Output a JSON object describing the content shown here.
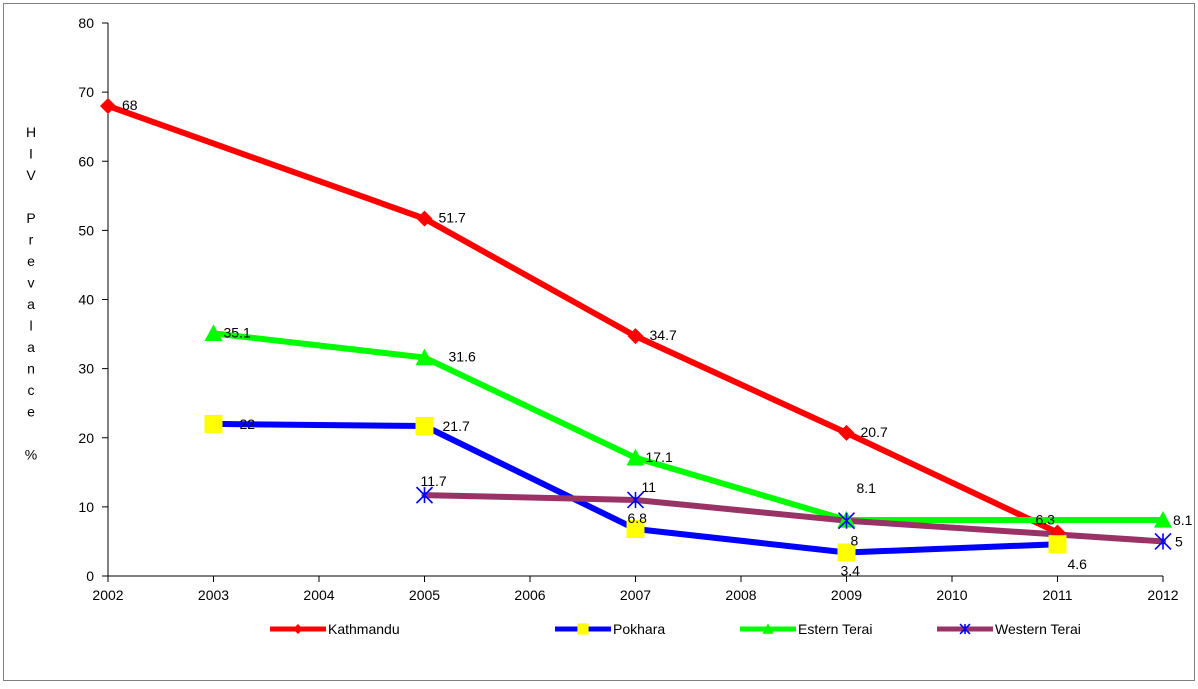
{
  "chart_data": {
    "type": "line",
    "title": "",
    "xlabel": "",
    "ylabel": "H I V Prevalance %",
    "ylabel_chars": [
      "H",
      "I",
      "V",
      "",
      "P",
      "r",
      "e",
      "v",
      "a",
      "l",
      "a",
      "n",
      "c",
      "e",
      "",
      "%"
    ],
    "x_ticks": [
      "2002",
      "2003",
      "2004",
      "2005",
      "2006",
      "2007",
      "2008",
      "2009",
      "2010",
      "2011",
      "2012"
    ],
    "y_ticks": [
      0,
      10,
      20,
      30,
      40,
      50,
      60,
      70,
      80
    ],
    "ylim": [
      0,
      80
    ],
    "grid": false,
    "legend_position": "bottom",
    "series": [
      {
        "name": "Kathmandu",
        "color": "#ff0000",
        "marker": "diamond",
        "marker_color": "#ff0000",
        "x": [
          "2002",
          "2005",
          "2007",
          "2009",
          "2011"
        ],
        "values": [
          68,
          51.7,
          34.7,
          20.7,
          6.3
        ],
        "labels": [
          "68",
          "51.7",
          "34.7",
          "20.7",
          "6.3"
        ]
      },
      {
        "name": "Pokhara",
        "color": "#0000ff",
        "marker": "square",
        "marker_color": "#ffff00",
        "x": [
          "2003",
          "2005",
          "2007",
          "2009",
          "2011"
        ],
        "values": [
          22,
          21.7,
          6.8,
          3.4,
          4.6
        ],
        "labels": [
          "22",
          "21.7",
          "6.8",
          "3.4",
          "4.6"
        ]
      },
      {
        "name": "Estern Terai",
        "color": "#00ff00",
        "marker": "triangle",
        "marker_color": "#00ff00",
        "x": [
          "2003",
          "2005",
          "2007",
          "2009",
          "2012"
        ],
        "values": [
          35.1,
          31.6,
          17.1,
          8.1,
          8.1
        ],
        "labels": [
          "35.1",
          "31.6",
          "17.1",
          "8.1",
          "8.1"
        ]
      },
      {
        "name": "Western Terai",
        "color": "#993366",
        "marker": "asterisk",
        "marker_color": "#0000ff",
        "x": [
          "2005",
          "2007",
          "2009",
          "2012"
        ],
        "values": [
          11.7,
          11,
          8,
          5
        ],
        "labels": [
          "11.7",
          "11",
          "8",
          "5"
        ]
      }
    ]
  }
}
